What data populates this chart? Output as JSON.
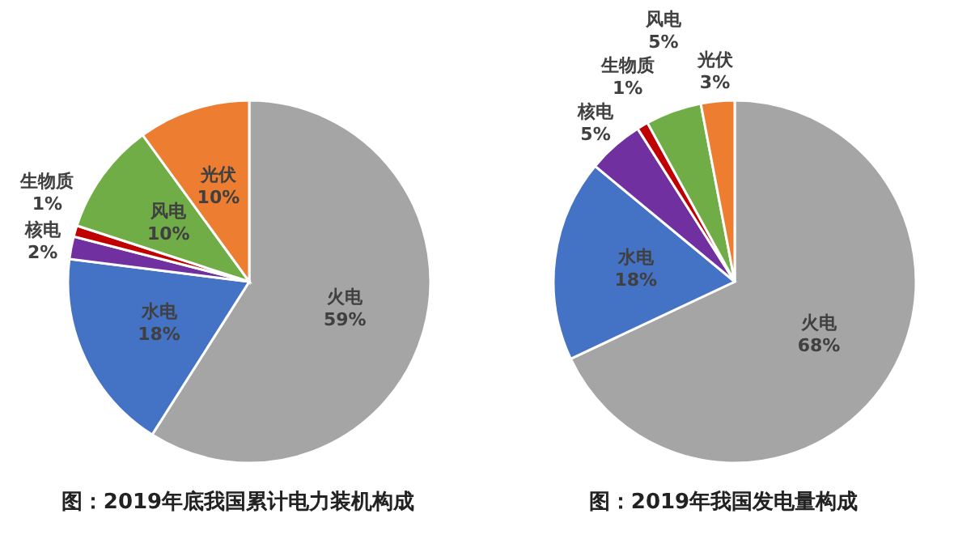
{
  "chart_data": [
    {
      "type": "pie",
      "title": "图：2019年底我国累计电力装机构成",
      "categories": [
        "火电",
        "水电",
        "核电",
        "生物质",
        "风电",
        "光伏"
      ],
      "values": [
        59,
        18,
        2,
        1,
        10,
        10
      ],
      "value_labels": [
        "59%",
        "18%",
        "2%",
        "1%",
        "10%",
        "10%"
      ],
      "colors": [
        "#a5a5a5",
        "#4472c4",
        "#7030a0",
        "#c00000",
        "#70ad47",
        "#ed7d31"
      ]
    },
    {
      "type": "pie",
      "title": "图：2019年我国发电量构成",
      "categories": [
        "火电",
        "水电",
        "核电",
        "生物质",
        "风电",
        "光伏"
      ],
      "values": [
        68,
        18,
        5,
        1,
        5,
        3
      ],
      "value_labels": [
        "68%",
        "18%",
        "5%",
        "1%",
        "5%",
        "3%"
      ],
      "colors": [
        "#a5a5a5",
        "#4472c4",
        "#7030a0",
        "#c00000",
        "#70ad47",
        "#ed7d31"
      ]
    }
  ]
}
